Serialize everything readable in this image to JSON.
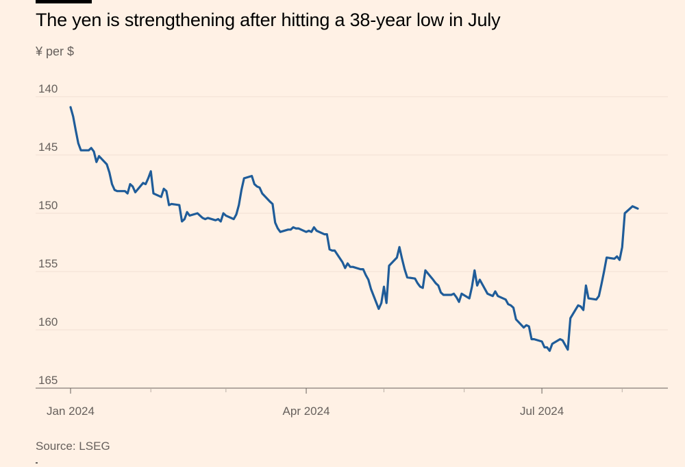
{
  "header": {
    "title": "The yen is strengthening after hitting a 38-year low in July",
    "subtitle": "¥ per $"
  },
  "footer": {
    "source": "Source: LSEG"
  },
  "chart_data": {
    "type": "line",
    "title": "The yen is strengthening after hitting a 38-year low in July",
    "ylabel": "¥ per $",
    "xlabel": "",
    "y_inverted": true,
    "ylim": [
      140,
      165
    ],
    "y_ticks": [
      140,
      145,
      150,
      155,
      160,
      165
    ],
    "x_domain": [
      "2024-01-01",
      "2024-08-16"
    ],
    "x_tick_labels": [
      {
        "date": "2024-01-01",
        "label": "Jan 2024"
      },
      {
        "date": "2024-04-01",
        "label": "Apr 2024"
      },
      {
        "date": "2024-07-01",
        "label": "Jul 2024"
      }
    ],
    "x_minor_ticks": [
      "2024-02-01",
      "2024-03-01",
      "2024-05-01",
      "2024-06-01",
      "2024-08-01"
    ],
    "grid": true,
    "colors": {
      "line": "#1F5C99",
      "grid": "#F0E0D2",
      "axis": "#66605C"
    },
    "series": [
      {
        "name": "USD/JPY",
        "points": [
          [
            "2024-01-01",
            140.9
          ],
          [
            "2024-01-02",
            141.7
          ],
          [
            "2024-01-03",
            142.9
          ],
          [
            "2024-01-04",
            144.0
          ],
          [
            "2024-01-05",
            144.6
          ],
          [
            "2024-01-08",
            144.6
          ],
          [
            "2024-01-09",
            144.4
          ],
          [
            "2024-01-10",
            144.7
          ],
          [
            "2024-01-11",
            145.6
          ],
          [
            "2024-01-12",
            145.1
          ],
          [
            "2024-01-15",
            145.8
          ],
          [
            "2024-01-16",
            146.5
          ],
          [
            "2024-01-17",
            147.5
          ],
          [
            "2024-01-18",
            148.0
          ],
          [
            "2024-01-19",
            148.1
          ],
          [
            "2024-01-22",
            148.1
          ],
          [
            "2024-01-23",
            148.3
          ],
          [
            "2024-01-24",
            147.5
          ],
          [
            "2024-01-25",
            147.7
          ],
          [
            "2024-01-26",
            148.2
          ],
          [
            "2024-01-29",
            147.4
          ],
          [
            "2024-01-30",
            147.5
          ],
          [
            "2024-01-31",
            147.0
          ],
          [
            "2024-02-01",
            146.4
          ],
          [
            "2024-02-02",
            148.3
          ],
          [
            "2024-02-05",
            148.6
          ],
          [
            "2024-02-06",
            147.9
          ],
          [
            "2024-02-07",
            148.1
          ],
          [
            "2024-02-08",
            149.3
          ],
          [
            "2024-02-09",
            149.2
          ],
          [
            "2024-02-12",
            149.3
          ],
          [
            "2024-02-13",
            150.7
          ],
          [
            "2024-02-14",
            150.5
          ],
          [
            "2024-02-15",
            149.9
          ],
          [
            "2024-02-16",
            150.2
          ],
          [
            "2024-02-19",
            150.0
          ],
          [
            "2024-02-20",
            150.2
          ],
          [
            "2024-02-21",
            150.4
          ],
          [
            "2024-02-22",
            150.5
          ],
          [
            "2024-02-23",
            150.4
          ],
          [
            "2024-02-26",
            150.6
          ],
          [
            "2024-02-27",
            150.5
          ],
          [
            "2024-02-28",
            150.7
          ],
          [
            "2024-02-29",
            150.0
          ],
          [
            "2024-03-01",
            150.2
          ],
          [
            "2024-03-04",
            150.5
          ],
          [
            "2024-03-05",
            150.1
          ],
          [
            "2024-03-06",
            149.3
          ],
          [
            "2024-03-07",
            148.0
          ],
          [
            "2024-03-08",
            147.0
          ],
          [
            "2024-03-11",
            146.8
          ],
          [
            "2024-03-12",
            147.5
          ],
          [
            "2024-03-13",
            147.7
          ],
          [
            "2024-03-14",
            147.8
          ],
          [
            "2024-03-15",
            148.3
          ],
          [
            "2024-03-18",
            149.0
          ],
          [
            "2024-03-19",
            149.2
          ],
          [
            "2024-03-20",
            150.8
          ],
          [
            "2024-03-21",
            151.3
          ],
          [
            "2024-03-22",
            151.6
          ],
          [
            "2024-03-25",
            151.4
          ],
          [
            "2024-03-26",
            151.4
          ],
          [
            "2024-03-27",
            151.2
          ],
          [
            "2024-03-28",
            151.3
          ],
          [
            "2024-03-29",
            151.3
          ],
          [
            "2024-04-01",
            151.6
          ],
          [
            "2024-04-02",
            151.5
          ],
          [
            "2024-04-03",
            151.6
          ],
          [
            "2024-04-04",
            151.2
          ],
          [
            "2024-04-05",
            151.5
          ],
          [
            "2024-04-08",
            151.8
          ],
          [
            "2024-04-09",
            151.8
          ],
          [
            "2024-04-10",
            153.1
          ],
          [
            "2024-04-11",
            153.2
          ],
          [
            "2024-04-12",
            153.2
          ],
          [
            "2024-04-15",
            154.2
          ],
          [
            "2024-04-16",
            154.7
          ],
          [
            "2024-04-17",
            154.3
          ],
          [
            "2024-04-18",
            154.6
          ],
          [
            "2024-04-19",
            154.6
          ],
          [
            "2024-04-22",
            154.8
          ],
          [
            "2024-04-23",
            154.8
          ],
          [
            "2024-04-24",
            155.3
          ],
          [
            "2024-04-25",
            155.7
          ],
          [
            "2024-04-26",
            156.5
          ],
          [
            "2024-04-29",
            158.2
          ],
          [
            "2024-04-30",
            157.7
          ],
          [
            "2024-05-01",
            156.3
          ],
          [
            "2024-05-02",
            157.7
          ],
          [
            "2024-05-03",
            154.5
          ],
          [
            "2024-05-06",
            153.8
          ],
          [
            "2024-05-07",
            152.9
          ],
          [
            "2024-05-08",
            153.9
          ],
          [
            "2024-05-09",
            154.8
          ],
          [
            "2024-05-10",
            155.5
          ],
          [
            "2024-05-13",
            155.6
          ],
          [
            "2024-05-14",
            156.0
          ],
          [
            "2024-05-15",
            156.3
          ],
          [
            "2024-05-16",
            156.4
          ],
          [
            "2024-05-17",
            154.9
          ],
          [
            "2024-05-20",
            155.7
          ],
          [
            "2024-05-21",
            156.0
          ],
          [
            "2024-05-22",
            156.2
          ],
          [
            "2024-05-23",
            156.8
          ],
          [
            "2024-05-24",
            157.0
          ],
          [
            "2024-05-27",
            157.0
          ],
          [
            "2024-05-28",
            156.9
          ],
          [
            "2024-05-29",
            157.2
          ],
          [
            "2024-05-30",
            157.6
          ],
          [
            "2024-05-31",
            156.9
          ],
          [
            "2024-06-03",
            157.3
          ],
          [
            "2024-06-04",
            156.3
          ],
          [
            "2024-06-05",
            154.9
          ],
          [
            "2024-06-06",
            156.2
          ],
          [
            "2024-06-07",
            155.7
          ],
          [
            "2024-06-10",
            156.9
          ],
          [
            "2024-06-11",
            157.0
          ],
          [
            "2024-06-12",
            157.1
          ],
          [
            "2024-06-13",
            156.7
          ],
          [
            "2024-06-14",
            157.1
          ],
          [
            "2024-06-17",
            157.4
          ],
          [
            "2024-06-18",
            157.8
          ],
          [
            "2024-06-19",
            157.9
          ],
          [
            "2024-06-20",
            158.1
          ],
          [
            "2024-06-21",
            159.1
          ],
          [
            "2024-06-24",
            159.8
          ],
          [
            "2024-06-25",
            159.6
          ],
          [
            "2024-06-26",
            159.7
          ],
          [
            "2024-06-27",
            160.8
          ],
          [
            "2024-06-28",
            160.8
          ],
          [
            "2024-07-01",
            161.0
          ],
          [
            "2024-07-02",
            161.5
          ],
          [
            "2024-07-03",
            161.5
          ],
          [
            "2024-07-04",
            161.8
          ],
          [
            "2024-07-05",
            161.2
          ],
          [
            "2024-07-08",
            160.8
          ],
          [
            "2024-07-09",
            160.9
          ],
          [
            "2024-07-10",
            161.3
          ],
          [
            "2024-07-11",
            161.7
          ],
          [
            "2024-07-12",
            159.0
          ],
          [
            "2024-07-15",
            157.9
          ],
          [
            "2024-07-16",
            158.0
          ],
          [
            "2024-07-17",
            158.3
          ],
          [
            "2024-07-18",
            156.2
          ],
          [
            "2024-07-19",
            157.3
          ],
          [
            "2024-07-22",
            157.4
          ],
          [
            "2024-07-23",
            157.1
          ],
          [
            "2024-07-24",
            156.1
          ],
          [
            "2024-07-25",
            155.0
          ],
          [
            "2024-07-26",
            153.8
          ],
          [
            "2024-07-29",
            153.9
          ],
          [
            "2024-07-30",
            153.7
          ],
          [
            "2024-07-31",
            154.0
          ],
          [
            "2024-08-01",
            152.9
          ],
          [
            "2024-08-02",
            150.0
          ],
          [
            "2024-08-05",
            149.4
          ],
          [
            "2024-08-06",
            149.5
          ],
          [
            "2024-08-07",
            149.6
          ]
        ]
      }
    ]
  }
}
